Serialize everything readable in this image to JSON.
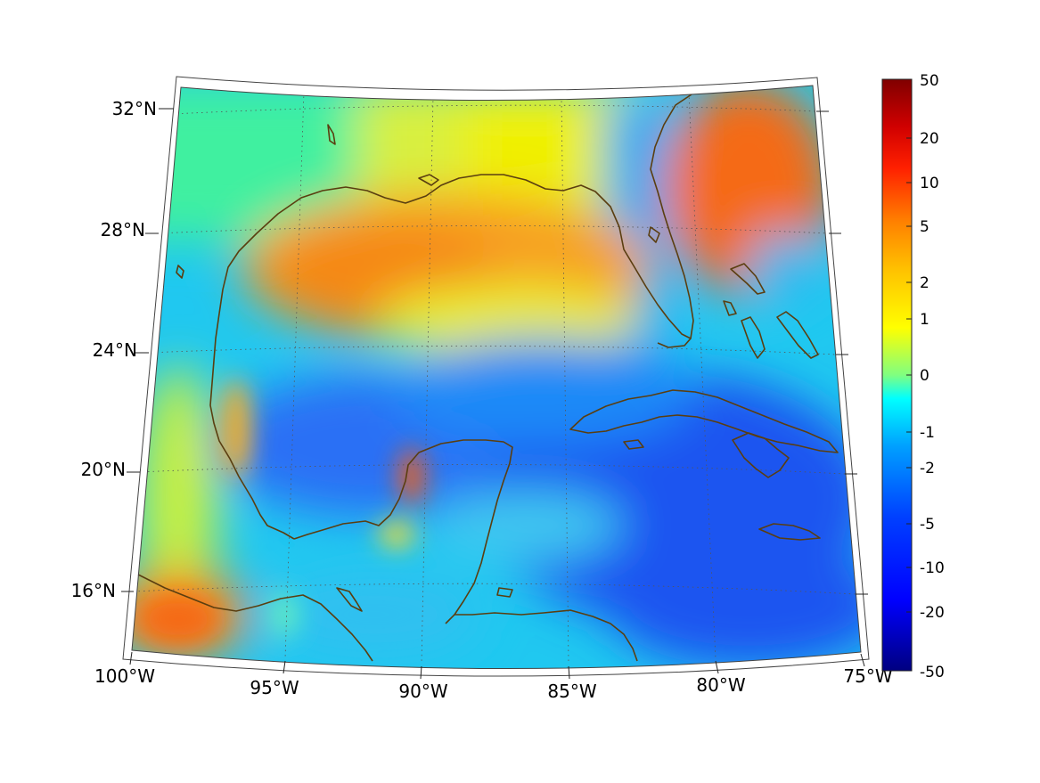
{
  "map": {
    "lat_labels": [
      "32°N",
      "28°N",
      "24°N",
      "20°N",
      "16°N"
    ],
    "lon_labels": [
      "100°W",
      "95°W",
      "90°W",
      "85°W",
      "80°W",
      "75°W"
    ],
    "extent": {
      "lon_min": -100,
      "lon_max": -75,
      "lat_min": 14.5,
      "lat_max": 32.5
    },
    "coastline_color": "#5a3e10",
    "graticule": "dotted"
  },
  "colorbar": {
    "tick_labels": [
      "50",
      "20",
      "10",
      "5",
      "2",
      "1",
      "0",
      "-1",
      "-2",
      "-5",
      "-10",
      "-20",
      "-50"
    ],
    "colormap": "jet",
    "colors": [
      "#800000",
      "#ff0000",
      "#ff8000",
      "#ffff00",
      "#80ff80",
      "#00ffff",
      "#0080ff",
      "#0000ff",
      "#000080"
    ]
  },
  "field_regions": [
    {
      "region": "northern Gulf of Mexico",
      "level": "warm",
      "color": "#f7a020"
    },
    {
      "region": "Atlantic east of Florida",
      "level": "warm",
      "color": "#f56a15"
    },
    {
      "region": "Pacific southwest of Mexico",
      "level": "warm",
      "color": "#f88a1e"
    },
    {
      "region": "Caribbean Sea",
      "level": "cold",
      "color": "#1e55f0"
    },
    {
      "region": "Bay of Campeche",
      "level": "cold",
      "color": "#2a70f5"
    }
  ]
}
